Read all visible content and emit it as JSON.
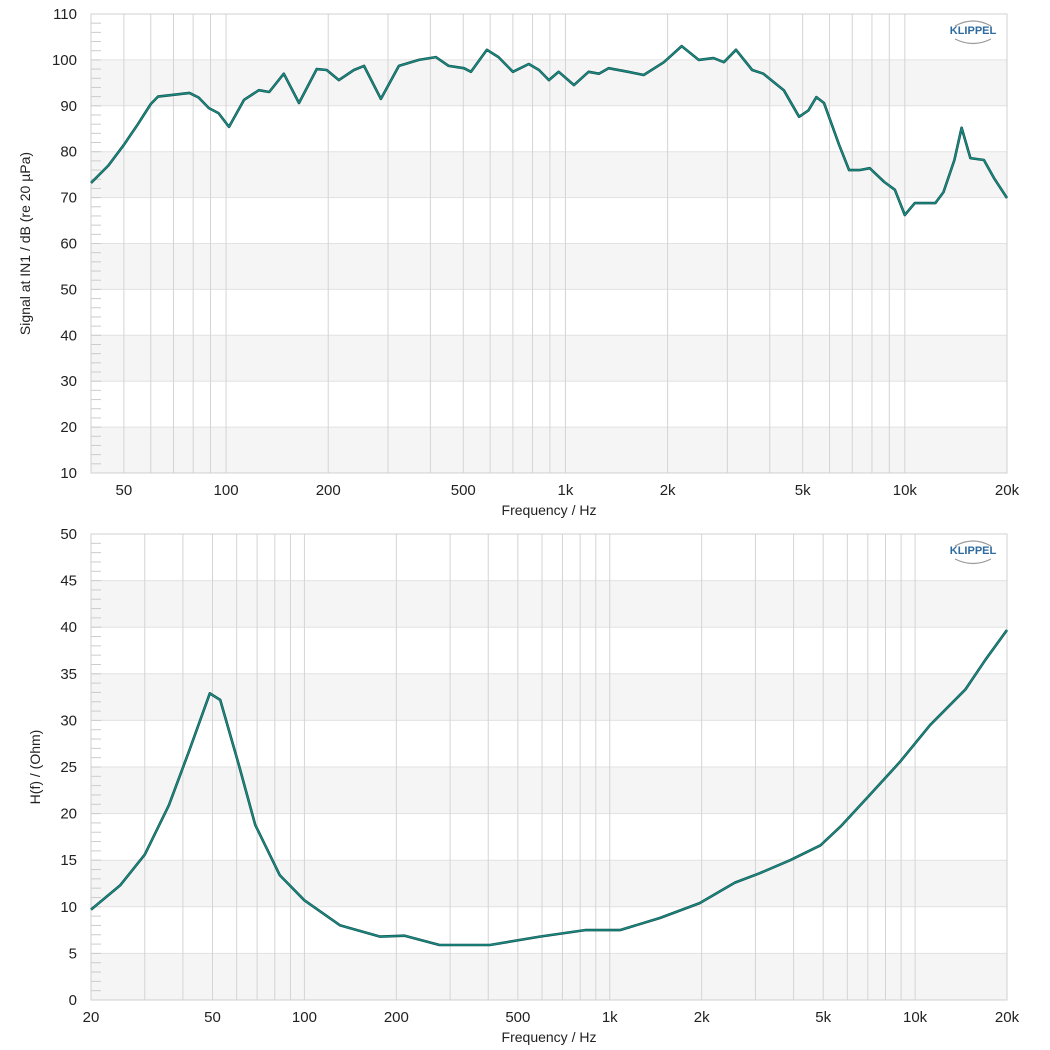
{
  "logo_text": "KLIPPEL",
  "line_color": "#1a8a82",
  "chart_data": [
    {
      "type": "line",
      "xlabel": "Frequency / Hz",
      "ylabel": "Signal at IN1 / dB (re 20 µPa)",
      "xscale": "log",
      "xlim": [
        40,
        20000
      ],
      "ylim": [
        10,
        110
      ],
      "yticks": [
        10,
        20,
        30,
        40,
        50,
        60,
        70,
        80,
        90,
        100,
        110
      ],
      "xticks": [
        50,
        100,
        200,
        500,
        1000,
        2000,
        5000,
        10000,
        20000
      ],
      "xtick_labels": [
        "50",
        "100",
        "200",
        "500",
        "1k",
        "2k",
        "5k",
        "10k",
        "20k"
      ],
      "grid": true,
      "x": [
        40,
        45,
        50,
        55,
        60,
        63,
        70,
        78,
        83,
        89,
        95,
        102,
        113,
        125,
        134,
        148,
        164,
        185,
        198,
        215,
        238,
        255,
        286,
        323,
        370,
        415,
        453,
        502,
        527,
        587,
        635,
        700,
        780,
        836,
        894,
        955,
        1060,
        1170,
        1255,
        1340,
        1530,
        1700,
        1950,
        2200,
        2470,
        2730,
        2930,
        3180,
        3550,
        3830,
        4400,
        4880,
        5200,
        5490,
        5780,
        6400,
        6850,
        7350,
        7880,
        8700,
        9350,
        10000,
        10700,
        11500,
        12300,
        13000,
        14000,
        14700,
        15600,
        17100,
        18300,
        20000
      ],
      "y": [
        73.2,
        77,
        81.5,
        86,
        90.4,
        92,
        92.4,
        92.8,
        91.8,
        89.5,
        88.4,
        85.4,
        91.3,
        93.4,
        93,
        97,
        90.6,
        98,
        97.8,
        95.6,
        97.8,
        98.7,
        91.5,
        98.7,
        100,
        100.6,
        98.7,
        98.2,
        97.4,
        102.2,
        100.6,
        97.4,
        99.1,
        97.8,
        95.6,
        97.4,
        94.5,
        97.4,
        97,
        98.2,
        97.4,
        96.7,
        99.5,
        103,
        100,
        100.4,
        99.5,
        102.2,
        97.8,
        97,
        93.4,
        87.6,
        89,
        91.9,
        90.6,
        81.5,
        76,
        76,
        76.4,
        73.4,
        71.7,
        66.2,
        68.8,
        68.8,
        68.8,
        71.2,
        78.2,
        85.2,
        78.6,
        78.2,
        74.3,
        69.9
      ]
    },
    {
      "type": "line",
      "xlabel": "Frequency / Hz",
      "ylabel": "H(f) / (Ohm)",
      "xscale": "log",
      "xlim": [
        20,
        20000
      ],
      "ylim": [
        0,
        50
      ],
      "yticks": [
        0,
        5,
        10,
        15,
        20,
        25,
        30,
        35,
        40,
        45,
        50
      ],
      "xticks": [
        20,
        50,
        100,
        200,
        500,
        1000,
        2000,
        5000,
        10000,
        20000
      ],
      "xtick_labels": [
        "20",
        "50",
        "100",
        "200",
        "500",
        "1k",
        "2k",
        "5k",
        "10k",
        "20k"
      ],
      "grid": true,
      "x": [
        20,
        24.9,
        30,
        36,
        42,
        49,
        53,
        61,
        69,
        83,
        100,
        131,
        177,
        213,
        277,
        405,
        590,
        830,
        1080,
        1460,
        1970,
        2570,
        3100,
        3900,
        4900,
        5700,
        7100,
        8900,
        11200,
        14600,
        17000,
        20000
      ],
      "y": [
        9.7,
        12.3,
        15.6,
        20.9,
        26.8,
        32.9,
        32.2,
        25.2,
        18.8,
        13.4,
        10.7,
        8,
        6.8,
        6.9,
        5.9,
        5.9,
        6.8,
        7.5,
        7.5,
        8.8,
        10.4,
        12.6,
        13.6,
        15,
        16.6,
        18.6,
        22,
        25.5,
        29.5,
        33.3,
        36.5,
        39.7
      ]
    }
  ]
}
